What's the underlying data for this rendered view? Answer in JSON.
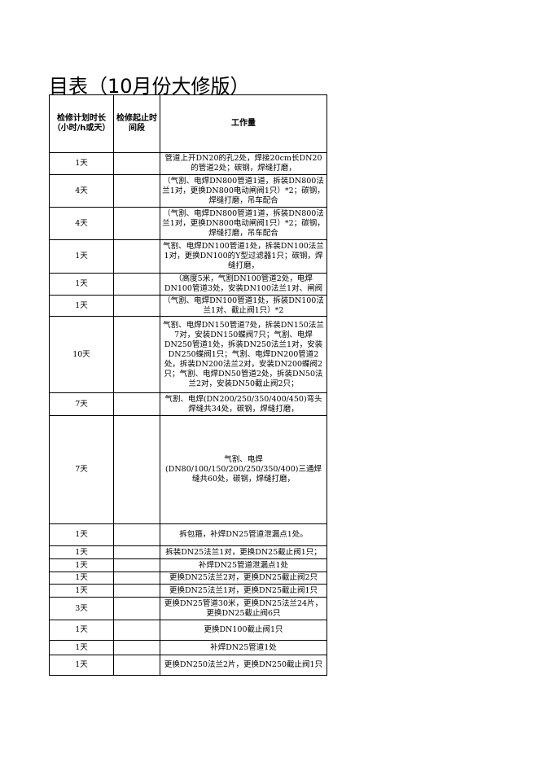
{
  "title": "目表（10月份大修版）",
  "table": {
    "header": [
      "检修计划时长（小时/h或天）",
      "检修起止时间段",
      "工作量"
    ],
    "rows": [
      [
        "1天",
        "管道上开DN20的孔2处，焊接20cm长DN20的管道2处；碳钢，焊缝打磨，"
      ],
      [
        "4天",
        "（气割、电焊DN800管道1道，拆装DN800法兰1对，更换DN800电动闸阀1只）*2；碳钢，焊缝打磨，吊车配合"
      ],
      [
        "4天",
        "（气割、电焊DN800管道1道，拆装DN800法兰1对，更换DN800电动闸阀1只）*2；碳钢，焊缝打磨，吊车配合"
      ],
      [
        "1天",
        "气割、电焊DN100管道1处，拆装DN100法兰1对，更换DN100的Y型过滤器1只；碳钢，焊缝打磨，"
      ],
      [
        "1天",
        "（高度5米，气割DN100管道2处，电焊DN100管道3处，安装DN100法兰1对、闸阀"
      ],
      [
        "1天",
        "（气割、电焊DN100管道1处，拆装DN100法兰1对、截止阀1只）*2"
      ],
      [
        "10天",
        "气割、电焊DN150管道7处，拆装DN150法兰7对，安装DN150蝶阀7只；气割、电焊DN250管道1处，拆装DN250法兰1对，安装DN250蝶阀1只；气割、电焊DN200管道2处，拆装DN200法兰2对，安装DN200蝶阀2只；气割、电焊DN50管道2处，拆装DN50法兰2对，安装DN50截止阀2只；"
      ],
      [
        "7天",
        "气割、电焊(DN200/250/350/400/450)弯头焊缝共34处，碳钢，焊缝打磨，"
      ],
      [
        "7天",
        "气割、电焊(DN80/100/150/200/250/350/400)三通焊缝共60处，碳钢，焊缝打磨，"
      ],
      [
        "1天",
        "拆包箍，补焊DN25管道泄漏点1处。"
      ],
      [
        "1天",
        "拆装DN25法兰1对，更换DN25截止阀1只；"
      ],
      [
        "1天",
        "补焊DN25管道泄漏点1处"
      ],
      [
        "1天",
        "更换DN25法兰2对，更换DN25截止阀2只"
      ],
      [
        "1天",
        "更换DN25法兰1对，更换DN25截止阀1只"
      ],
      [
        "3天",
        "更换DN25管道30米，更换DN25法兰24片，更换DN25截止阀6只"
      ],
      [
        "1天",
        "更换DN100截止阀1只"
      ],
      [
        "1天",
        "补焊DN25管道1处"
      ],
      [
        "1天",
        "更换DN250法兰2片，更换DN250截止阀1只"
      ]
    ]
  }
}
